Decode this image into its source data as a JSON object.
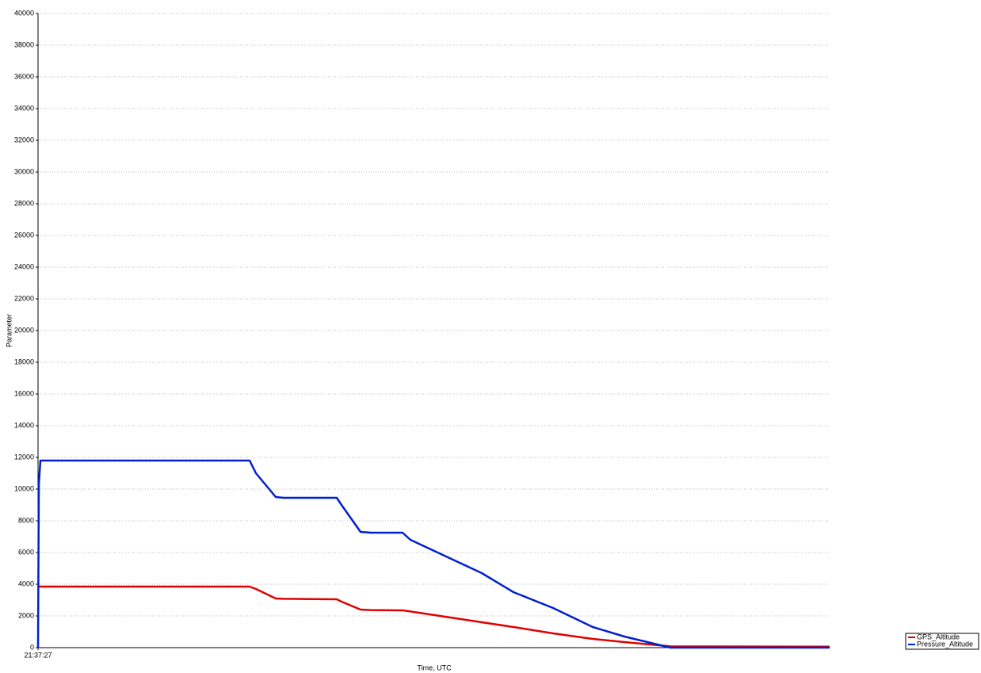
{
  "chart_data": {
    "type": "line",
    "x_label": "Time, UTC",
    "y_label": "Parameter",
    "x": [
      0,
      1,
      3,
      267,
      275,
      300,
      310,
      377,
      383,
      407,
      420,
      460,
      470,
      560,
      600,
      650,
      700,
      740,
      798,
      999
    ],
    "series": [
      {
        "name": "GPS_Altitude",
        "color": "#e00000",
        "values": [
          3850,
          3850,
          3850,
          3850,
          3700,
          3100,
          3080,
          3050,
          2900,
          2400,
          2370,
          2350,
          2280,
          1600,
          1300,
          900,
          550,
          350,
          80,
          60
        ]
      },
      {
        "name": "Pressure_Altitude",
        "color": "#0020d0",
        "values": [
          0,
          10300,
          11800,
          11800,
          11000,
          9500,
          9450,
          9450,
          9000,
          7300,
          7250,
          7250,
          6800,
          4700,
          3500,
          2500,
          1300,
          700,
          0,
          0
        ]
      }
    ],
    "xlim": [
      0,
      999
    ],
    "xticks": [
      {
        "value": 0,
        "label": "21:37:27"
      }
    ],
    "ylim": [
      0,
      40000
    ],
    "yticks": [
      0,
      2000,
      4000,
      6000,
      8000,
      10000,
      12000,
      14000,
      16000,
      18000,
      20000,
      22000,
      24000,
      26000,
      28000,
      30000,
      32000,
      34000,
      36000,
      38000,
      40000
    ],
    "grid": true,
    "legend": "bottom-right"
  }
}
